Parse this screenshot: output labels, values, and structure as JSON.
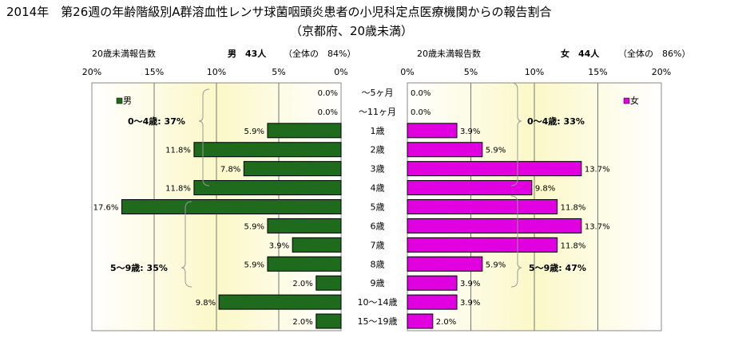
{
  "title": {
    "line1": "2014年　第26週の年齢階級別A群溶血性レンサ球菌咽頭炎患者の小児科定点医療機関からの報告割合",
    "line2": "（京都府、20歳未満）"
  },
  "chart_data": {
    "type": "bar",
    "orientation": "horizontal-butterfly",
    "categories": [
      "～5ヶ月",
      "～11ヶ月",
      "1歳",
      "2歳",
      "3歳",
      "4歳",
      "5歳",
      "6歳",
      "7歳",
      "8歳",
      "9歳",
      "10～14歳",
      "15～19歳"
    ],
    "series": [
      {
        "name": "男",
        "side": "left",
        "color": "#1e6b1e",
        "values": [
          0.0,
          0.0,
          5.9,
          11.8,
          7.8,
          11.8,
          17.6,
          5.9,
          3.9,
          5.9,
          2.0,
          9.8,
          2.0
        ],
        "labels": [
          "0.0%",
          "0.0%",
          "5.9%",
          "11.8%",
          "7.8%",
          "11.8%",
          "17.6%",
          "5.9%",
          "3.9%",
          "5.9%",
          "2.0%",
          "9.8%",
          "2.0%"
        ],
        "header_label": "20歳未満報告数",
        "header_count": "男　43人",
        "header_pct": "（全体の　84%）",
        "group_annotations": [
          "0～4歳: 37%",
          "5～9歳: 35%"
        ]
      },
      {
        "name": "女",
        "side": "right",
        "color": "#e000e0",
        "values": [
          0.0,
          0.0,
          3.9,
          5.9,
          13.7,
          9.8,
          11.8,
          13.7,
          11.8,
          5.9,
          3.9,
          3.9,
          2.0
        ],
        "labels": [
          "0.0%",
          "0.0%",
          "3.9%",
          "5.9%",
          "13.7%",
          "9.8%",
          "11.8%",
          "13.7%",
          "11.8%",
          "5.9%",
          "3.9%",
          "3.9%",
          "2.0%"
        ],
        "header_label": "20歳未満報告数",
        "header_count": "女　44人",
        "header_pct": "（全体の　86%）",
        "group_annotations": [
          "0～4歳: 33%",
          "5～9歳: 47%"
        ]
      }
    ],
    "axis_ticks": [
      "20%",
      "15%",
      "10%",
      "5%",
      "0%"
    ],
    "axis_ticks_right": [
      "0%",
      "5%",
      "10%",
      "15%",
      "20%"
    ],
    "xlim": [
      0,
      20
    ],
    "grid": true,
    "legend": {
      "left": "男",
      "right": "女"
    }
  }
}
